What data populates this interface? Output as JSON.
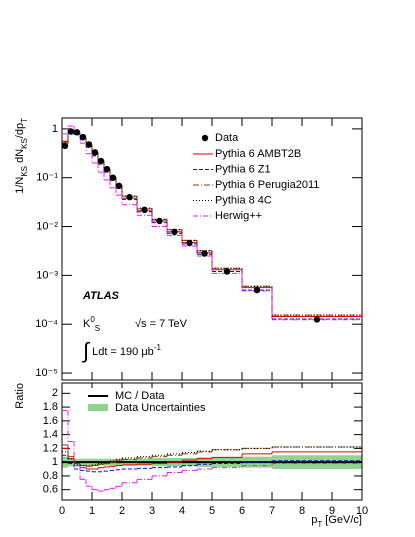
{
  "chart_data": {
    "type": "histogram-ratio",
    "ylabel": [
      {
        "text": "1/N"
      },
      {
        "text": "KS",
        "sub": true
      },
      {
        "text": " dN"
      },
      {
        "text": "KS",
        "sub": true
      },
      {
        "text": "/dp"
      },
      {
        "text": "T",
        "sub": true
      }
    ],
    "xlabel": [
      {
        "text": "p"
      },
      {
        "text": "T",
        "sub": true
      },
      {
        "text": " [GeV/c]"
      }
    ],
    "bins": [
      0,
      0.2,
      0.4,
      0.6,
      0.8,
      1.0,
      1.2,
      1.4,
      1.6,
      1.8,
      2.0,
      2.5,
      3.0,
      3.5,
      4.0,
      4.5,
      5.0,
      6.0,
      7.0,
      10.0
    ],
    "xlim": [
      0,
      10
    ],
    "xticks": [
      0,
      1,
      2,
      3,
      4,
      5,
      6,
      7,
      8,
      9,
      10
    ],
    "ylim": [
      7.2e-06,
      1.67
    ],
    "log_y": true,
    "yticks": [
      {
        "value": 1e-05,
        "label": "10⁻⁵"
      },
      {
        "value": 0.0001,
        "label": "10⁻⁴"
      },
      {
        "value": 0.001,
        "label": "10⁻³"
      },
      {
        "value": 0.01,
        "label": "10⁻²"
      },
      {
        "value": 0.1,
        "label": "10⁻¹"
      },
      1
    ],
    "data": {
      "name": "Data",
      "color": "#000000",
      "values": [
        0.45,
        0.88,
        0.85,
        0.68,
        0.48,
        0.33,
        0.22,
        0.15,
        0.1,
        0.068,
        0.04,
        0.022,
        0.013,
        0.0078,
        0.0046,
        0.0028,
        0.0012,
        0.0005,
        0.000125
      ]
    },
    "series": [
      {
        "name": "Pythia 6 AMBT2B",
        "color": "#e00000",
        "dash": "none",
        "values": [
          0.54,
          0.92,
          0.81,
          0.63,
          0.43,
          0.3,
          0.2,
          0.14,
          0.094,
          0.065,
          0.038,
          0.021,
          0.013,
          0.0078,
          0.0047,
          0.0029,
          0.0013,
          0.00056,
          0.000144
        ]
      },
      {
        "name": "Pythia 6 Z1",
        "color": "#1010d0",
        "dash": "4,2",
        "values": [
          0.5,
          0.86,
          0.77,
          0.6,
          0.42,
          0.28,
          0.19,
          0.13,
          0.088,
          0.061,
          0.036,
          0.02,
          0.012,
          0.0073,
          0.0044,
          0.0027,
          0.0012,
          0.0005,
          0.000128
        ]
      },
      {
        "name": "Pythia 6 Perugia2011",
        "color": "#804000",
        "dash": "6,2,1,2",
        "values": [
          0.56,
          0.95,
          0.83,
          0.65,
          0.45,
          0.31,
          0.21,
          0.15,
          0.1,
          0.069,
          0.042,
          0.023,
          0.014,
          0.0086,
          0.0052,
          0.0032,
          0.0014,
          0.0006,
          0.000153
        ]
      },
      {
        "name": "Pythia 8 4C",
        "color": "#000000",
        "dash": "1,2",
        "values": [
          0.52,
          0.92,
          0.82,
          0.65,
          0.46,
          0.32,
          0.22,
          0.15,
          0.1,
          0.071,
          0.042,
          0.024,
          0.014,
          0.0087,
          0.0052,
          0.0032,
          0.0014,
          0.0006,
          0.000153
        ]
      },
      {
        "name": "Herwig++",
        "color": "#e020e0",
        "dash": "5,2,1,2",
        "values": [
          0.79,
          1.14,
          0.81,
          0.51,
          0.31,
          0.2,
          0.13,
          0.09,
          0.062,
          0.044,
          0.028,
          0.017,
          0.01,
          0.0066,
          0.004,
          0.0025,
          0.0011,
          0.00048,
          0.000123
        ]
      }
    ],
    "annotations": [
      {
        "parts": [
          {
            "text": "ATLAS"
          }
        ],
        "style": "bold-italic"
      },
      {
        "parts": [
          {
            "text": "K"
          },
          {
            "text": "0",
            "sup": true
          },
          {
            "text": "S",
            "sub": true
          }
        ]
      },
      {
        "parts": [
          {
            "text": "√s = 7 TeV"
          }
        ]
      },
      {
        "parts": [
          {
            "text": "∫"
          },
          {
            "text": " Ldt = 190 μb"
          },
          {
            "text": "-1",
            "sup": true
          }
        ]
      }
    ],
    "ratio": {
      "ylabel": "Ratio",
      "ylim": [
        0.45,
        2.15
      ],
      "yticks": [
        0.6,
        0.8,
        1,
        1.2,
        1.4,
        1.6,
        1.8,
        2
      ],
      "reference": {
        "name": "MC / Data",
        "value": 1,
        "color": "#000000"
      },
      "uncertainty": {
        "name": "Data Uncertainties",
        "color": "#8fd48f",
        "values": [
          0.08,
          0.06,
          0.05,
          0.05,
          0.05,
          0.05,
          0.05,
          0.05,
          0.05,
          0.05,
          0.05,
          0.05,
          0.06,
          0.06,
          0.06,
          0.07,
          0.07,
          0.08,
          0.1
        ]
      },
      "series": [
        {
          "color": "#e00000",
          "dash": "none",
          "values": [
            1.2,
            1.05,
            0.95,
            0.92,
            0.9,
            0.9,
            0.92,
            0.93,
            0.94,
            0.95,
            0.96,
            0.97,
            0.98,
            1.0,
            1.03,
            1.05,
            1.07,
            1.12,
            1.15
          ]
        },
        {
          "color": "#1010d0",
          "dash": "4,2",
          "values": [
            1.1,
            0.98,
            0.9,
            0.88,
            0.87,
            0.86,
            0.86,
            0.87,
            0.88,
            0.89,
            0.9,
            0.91,
            0.92,
            0.93,
            0.95,
            0.97,
            0.98,
            1.0,
            1.02
          ]
        },
        {
          "color": "#804000",
          "dash": "6,2,1,2",
          "values": [
            1.25,
            1.08,
            0.98,
            0.95,
            0.94,
            0.95,
            0.97,
            0.98,
            1.0,
            1.02,
            1.04,
            1.06,
            1.08,
            1.1,
            1.12,
            1.15,
            1.18,
            1.2,
            1.22
          ]
        },
        {
          "color": "#000000",
          "dash": "1,2",
          "values": [
            1.15,
            1.05,
            0.97,
            0.95,
            0.95,
            0.96,
            0.98,
            1.0,
            1.02,
            1.04,
            1.06,
            1.08,
            1.1,
            1.12,
            1.14,
            1.16,
            1.18,
            1.2,
            1.22
          ]
        },
        {
          "color": "#e020e0",
          "dash": "5,2,1,2",
          "values": [
            1.75,
            1.3,
            0.95,
            0.75,
            0.65,
            0.6,
            0.58,
            0.6,
            0.62,
            0.65,
            0.7,
            0.75,
            0.8,
            0.85,
            0.88,
            0.9,
            0.92,
            0.95,
            0.98
          ]
        }
      ]
    }
  }
}
